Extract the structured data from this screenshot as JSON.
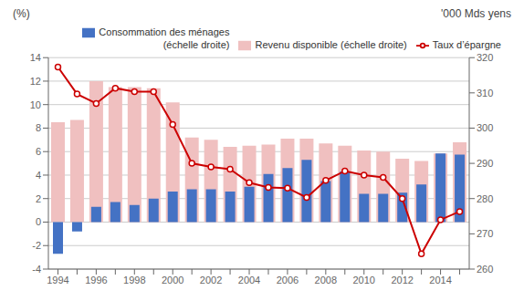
{
  "chart_data": {
    "type": "bar",
    "categories": [
      "1994",
      null,
      "1996",
      null,
      "1998",
      null,
      "2000",
      null,
      "2002",
      null,
      "2004",
      null,
      "2006",
      null,
      "2008",
      null,
      "2010",
      null,
      "2012",
      null,
      "2014",
      null
    ],
    "series": [
      {
        "name": "Revenu disponible (échelle droite)",
        "type": "bar",
        "color": "#f0c0c0",
        "values": [
          8.5,
          8.7,
          12.0,
          11.5,
          11.5,
          11.4,
          10.2,
          7.2,
          7.0,
          6.4,
          6.5,
          6.6,
          7.1,
          7.1,
          6.7,
          6.5,
          6.1,
          6.0,
          5.4,
          5.2,
          5.85,
          6.8
        ]
      },
      {
        "name": "Consommation des ménages\n(échelle droite)",
        "type": "bar",
        "color": "#4472c4",
        "values": [
          -2.7,
          -0.8,
          1.3,
          1.7,
          1.45,
          2.0,
          2.6,
          2.8,
          2.8,
          2.6,
          3.0,
          4.1,
          4.6,
          5.3,
          3.5,
          4.3,
          2.4,
          2.4,
          2.5,
          3.2,
          5.85,
          5.75
        ]
      },
      {
        "name": "Taux d’épargne",
        "type": "line",
        "color": "#cc0000",
        "marker": "circle",
        "values": [
          13.2,
          10.9,
          10.1,
          11.4,
          11.1,
          11.1,
          8.3,
          5.0,
          4.7,
          4.5,
          3.35,
          2.95,
          2.9,
          2.1,
          3.55,
          4.35,
          4.0,
          3.8,
          2.0,
          -2.7,
          0.2,
          0.9
        ]
      }
    ],
    "ylim": [
      -4,
      14
    ],
    "yticks": [
      -4,
      -2,
      0,
      2,
      4,
      6,
      8,
      10,
      12,
      14
    ],
    "y2lim": [
      260,
      320
    ],
    "y2ticks": [
      260,
      270,
      280,
      290,
      300,
      310,
      320
    ],
    "ylabel": "(%)",
    "y2label": "'000 Mds yens",
    "grid": true,
    "legend": "upper right"
  }
}
